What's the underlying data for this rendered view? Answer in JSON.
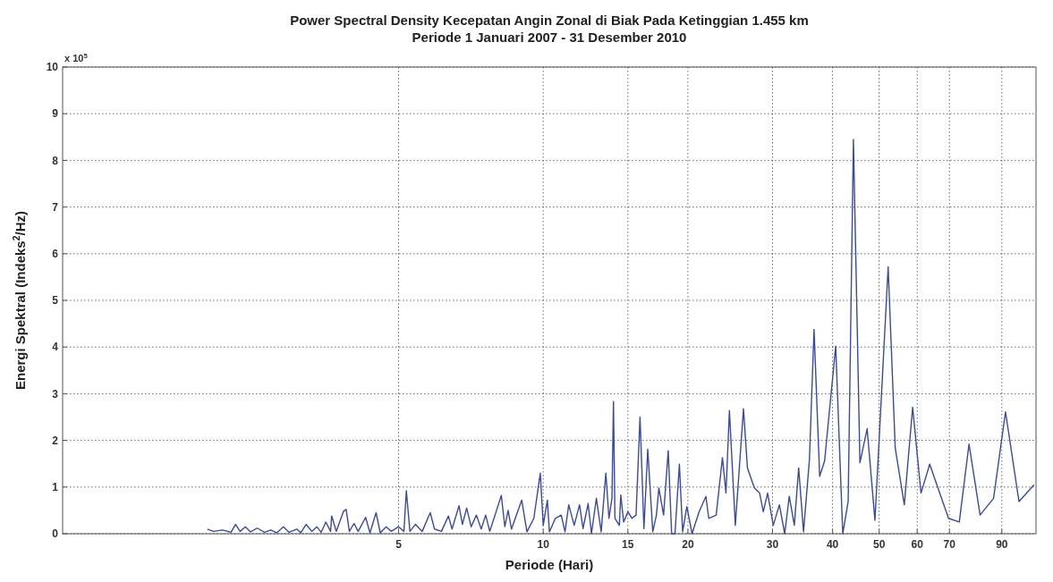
{
  "chart_data": {
    "type": "line",
    "title": "Power Spectral Density Kecepatan Angin Zonal di Biak Pada Ketinggian 1.455 km",
    "subtitle": "Periode 1 Januari 2007 - 31 Desember 2010",
    "xlabel": "Periode (Hari)",
    "ylabel": "Energi Spektral (Indeks$^{2}$/Hz)",
    "annotations": [
      "x 10$^{5}$"
    ],
    "log": "x",
    "grid": true,
    "line_style": "solid",
    "xlim": [
      1,
      106
    ],
    "xticks": [
      5,
      10,
      15,
      20,
      30,
      40,
      50,
      60,
      70,
      90
    ],
    "ylim": [
      0,
      10
    ],
    "yticks": [
      0,
      1,
      2,
      3,
      4,
      5,
      6,
      7,
      8,
      9,
      10
    ],
    "series": [
      {
        "color": "#3a4aa3",
        "x": [
          2.0,
          2.06,
          2.15,
          2.24,
          2.29,
          2.34,
          2.4,
          2.46,
          2.54,
          2.63,
          2.71,
          2.79,
          2.88,
          2.96,
          3.07,
          3.13,
          3.21,
          3.3,
          3.38,
          3.45,
          3.53,
          3.61,
          3.63,
          3.71,
          3.84,
          3.89,
          3.95,
          4.04,
          4.12,
          4.27,
          4.36,
          4.49,
          4.58,
          4.71,
          4.83,
          5.0,
          5.13,
          5.19,
          5.28,
          5.42,
          5.6,
          5.82,
          5.94,
          6.14,
          6.35,
          6.46,
          6.68,
          6.79,
          6.93,
          7.08,
          7.26,
          7.43,
          7.59,
          7.74,
          8.18,
          8.32,
          8.45,
          8.59,
          9.02,
          9.25,
          9.56,
          9.86,
          10.0,
          10.2,
          10.3,
          10.6,
          10.9,
          11.1,
          11.3,
          11.6,
          11.9,
          12.1,
          12.4,
          12.6,
          12.9,
          13.2,
          13.5,
          13.7,
          13.9,
          14.0,
          14.1,
          14.4,
          14.5,
          14.7,
          15.0,
          15.3,
          15.6,
          15.9,
          16.2,
          16.5,
          16.9,
          17.2,
          17.4,
          17.8,
          18.2,
          18.5,
          18.8,
          19.2,
          19.5,
          19.9,
          20.4,
          21.1,
          21.8,
          22.1,
          22.9,
          23.6,
          24.0,
          24.4,
          25.1,
          26.1,
          26.6,
          27.5,
          28.2,
          28.7,
          29.3,
          30.1,
          31.0,
          31.8,
          32.5,
          33.3,
          34.0,
          34.8,
          35.8,
          36.6,
          37.6,
          38.5,
          40.6,
          42.0,
          43.1,
          44.2,
          45.6,
          47.2,
          49.0,
          52.2,
          54.0,
          56.4,
          58.7,
          61.1,
          63.7,
          69.7,
          73.4,
          76.9,
          81.1,
          86.5,
          91.6,
          97.7,
          105
        ],
        "values": [
          0.1,
          0.05,
          0.08,
          0.03,
          0.2,
          0.05,
          0.15,
          0.04,
          0.12,
          0.03,
          0.08,
          0.02,
          0.15,
          0.03,
          0.1,
          0.02,
          0.2,
          0.05,
          0.15,
          0.03,
          0.25,
          0.05,
          0.38,
          0.05,
          0.48,
          0.52,
          0.05,
          0.22,
          0.05,
          0.35,
          0.02,
          0.45,
          0.02,
          0.15,
          0.05,
          0.15,
          0.05,
          0.92,
          0.05,
          0.2,
          0.05,
          0.45,
          0.1,
          0.05,
          0.38,
          0.1,
          0.6,
          0.2,
          0.55,
          0.15,
          0.4,
          0.1,
          0.4,
          0.05,
          0.82,
          0.15,
          0.5,
          0.1,
          0.72,
          0.04,
          0.33,
          1.3,
          0.18,
          0.72,
          0.04,
          0.33,
          0.4,
          0.04,
          0.62,
          0.18,
          0.62,
          0.11,
          0.65,
          0,
          0.76,
          0.04,
          1.3,
          0.33,
          0.76,
          2.83,
          0.33,
          0.18,
          0.83,
          0.25,
          0.47,
          0.33,
          0.4,
          2.5,
          0.11,
          1.81,
          0.04,
          0.4,
          0.98,
          0.4,
          1.78,
          0,
          0,
          1.49,
          0.04,
          0.58,
          0,
          0.47,
          0.8,
          0.33,
          0.4,
          1.63,
          0.87,
          2.64,
          0.18,
          2.68,
          1.41,
          0.98,
          0.87,
          0.47,
          0.87,
          0.18,
          0.62,
          0,
          0.8,
          0.18,
          1.41,
          0.04,
          1.59,
          4.38,
          1.23,
          1.56,
          4.02,
          0,
          0.69,
          8.45,
          1.52,
          2.25,
          0.29,
          5.72,
          1.84,
          0.62,
          2.71,
          0.87,
          1.49,
          0.33,
          0.25,
          1.92,
          0.4,
          0.76,
          2.61,
          0.69,
          1.05
        ]
      }
    ]
  }
}
